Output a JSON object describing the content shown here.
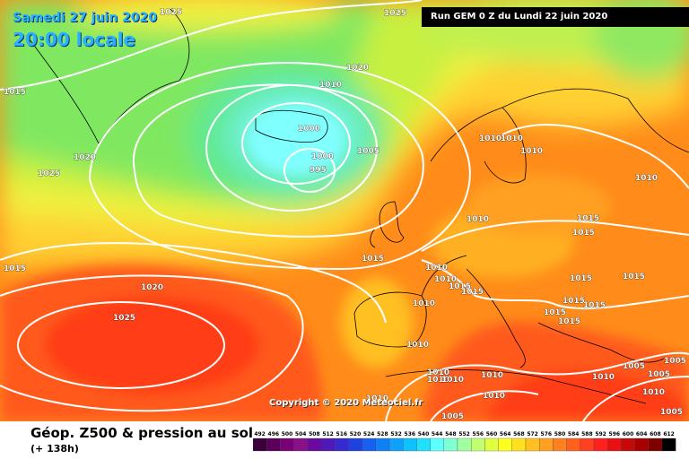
{
  "header": {
    "date_label": "Samedi 27 juin 2020",
    "time_label": "20:00 locale",
    "run_label": "Run GEM 0 Z du Lundi 22 juin 2020"
  },
  "copyright": "Copyright © 2020 Meteociel.fr",
  "footer": {
    "title": "Géop. Z500 & pression au sol",
    "subtitle": "(+ 138h)"
  },
  "legend": {
    "values": [
      "492",
      "496",
      "500",
      "504",
      "508",
      "512",
      "516",
      "520",
      "524",
      "528",
      "532",
      "536",
      "540",
      "544",
      "548",
      "552",
      "556",
      "560",
      "564",
      "568",
      "572",
      "576",
      "580",
      "584",
      "588",
      "592",
      "596",
      "600",
      "604",
      "608",
      "612"
    ],
    "colors": [
      "#3a003a",
      "#5a005a",
      "#7a007a",
      "#8a108a",
      "#6a0aa0",
      "#5018b8",
      "#3828d0",
      "#2040e0",
      "#1860f0",
      "#1080f8",
      "#10a0ff",
      "#10c0ff",
      "#20e0ff",
      "#60ffff",
      "#80ffd0",
      "#a0ffa0",
      "#c0ff70",
      "#e0ff40",
      "#ffff20",
      "#ffe020",
      "#ffc020",
      "#ffa020",
      "#ff8020",
      "#ff6020",
      "#ff4020",
      "#ff2020",
      "#e81010",
      "#c80808",
      "#a80000",
      "#800000",
      "#000000"
    ]
  },
  "pressure_labels": [
    {
      "text": "1025"
    },
    {
      "text": "1025"
    },
    {
      "text": "1020"
    },
    {
      "text": "1010"
    },
    {
      "text": "1015"
    },
    {
      "text": "1020"
    },
    {
      "text": "1025"
    },
    {
      "text": "1000"
    },
    {
      "text": "1000"
    },
    {
      "text": "995"
    },
    {
      "text": "1005"
    },
    {
      "text": "1010"
    },
    {
      "text": "1010"
    },
    {
      "text": "1010"
    },
    {
      "text": "1010"
    },
    {
      "text": "1010"
    },
    {
      "text": "1015"
    },
    {
      "text": "1015"
    },
    {
      "text": "1015"
    },
    {
      "text": "1010"
    },
    {
      "text": "1010"
    },
    {
      "text": "1015"
    },
    {
      "text": "1015"
    },
    {
      "text": "1015"
    },
    {
      "text": "1015"
    },
    {
      "text": "1020"
    },
    {
      "text": "1025"
    },
    {
      "text": "1015"
    },
    {
      "text": "1010"
    },
    {
      "text": "1015"
    },
    {
      "text": "1010"
    },
    {
      "text": "1010"
    },
    {
      "text": "1015"
    },
    {
      "text": "1015"
    },
    {
      "text": "1015"
    },
    {
      "text": "1010"
    },
    {
      "text": "1010"
    },
    {
      "text": "1010"
    },
    {
      "text": "1010"
    },
    {
      "text": "1010"
    },
    {
      "text": "1005"
    },
    {
      "text": "1005"
    },
    {
      "text": "1005"
    },
    {
      "text": "1010"
    },
    {
      "text": "1005"
    },
    {
      "text": "1010"
    },
    {
      "text": "1005"
    }
  ]
}
